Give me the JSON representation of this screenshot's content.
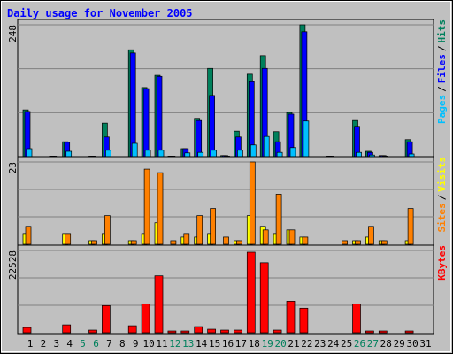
{
  "chart_data": [
    {
      "type": "bar",
      "title": "Daily usage for November 2005",
      "ylim": [
        0,
        248
      ],
      "yticks": [
        248
      ],
      "legend_separator": "/",
      "series": [
        {
          "name": "Hits",
          "color": "#00805c",
          "values": [
            88,
            0,
            1,
            28,
            0,
            1,
            63,
            0,
            201,
            130,
            153,
            1,
            15,
            72,
            166,
            2,
            48,
            155,
            190,
            47,
            83,
            248,
            0,
            1,
            0,
            68,
            10,
            2,
            0,
            32,
            0
          ]
        },
        {
          "name": "Files",
          "color": "#0000ff",
          "values": [
            85,
            0,
            1,
            27,
            0,
            1,
            37,
            0,
            195,
            128,
            151,
            1,
            15,
            68,
            115,
            2,
            37,
            141,
            166,
            28,
            80,
            235,
            0,
            1,
            0,
            57,
            8,
            2,
            0,
            28,
            0
          ]
        },
        {
          "name": "Pages",
          "color": "#00c0ff",
          "values": [
            15,
            0,
            0,
            10,
            0,
            0,
            12,
            0,
            25,
            12,
            12,
            0,
            7,
            8,
            12,
            1,
            12,
            22,
            38,
            8,
            17,
            67,
            0,
            0,
            0,
            8,
            3,
            1,
            0,
            5,
            0
          ]
        }
      ]
    },
    {
      "type": "bar",
      "ylim": [
        0,
        23
      ],
      "yticks": [
        23
      ],
      "legend_separator": "/",
      "series": [
        {
          "name": "Visits",
          "color": "#ffff00",
          "values": [
            3,
            0,
            0,
            3,
            0,
            1,
            3,
            0,
            1,
            3,
            6,
            0,
            2,
            2,
            3,
            0,
            1,
            8,
            5,
            3,
            4,
            2,
            0,
            0,
            0,
            1,
            2,
            1,
            0,
            1,
            0
          ]
        },
        {
          "name": "Sites",
          "color": "#ff8000",
          "values": [
            5,
            0,
            0,
            3,
            0,
            1,
            8,
            0,
            1,
            21,
            20,
            1,
            3,
            8,
            10,
            2,
            1,
            23,
            4,
            14,
            4,
            2,
            0,
            0,
            1,
            1,
            5,
            1,
            0,
            10,
            0
          ]
        }
      ]
    },
    {
      "type": "bar",
      "ylim": [
        0,
        22528
      ],
      "yticks": [
        22528
      ],
      "categories": [
        "1",
        "2",
        "3",
        "4",
        "5",
        "6",
        "7",
        "8",
        "9",
        "10",
        "11",
        "12",
        "13",
        "14",
        "15",
        "16",
        "17",
        "18",
        "19",
        "20",
        "21",
        "22",
        "23",
        "24",
        "25",
        "26",
        "27",
        "28",
        "29",
        "30",
        "31"
      ],
      "category_colors": [
        "#000000",
        "#000000",
        "#000000",
        "#000000",
        "#00805c",
        "#00805c",
        "#000000",
        "#000000",
        "#000000",
        "#000000",
        "#000000",
        "#00805c",
        "#00805c",
        "#000000",
        "#000000",
        "#000000",
        "#000000",
        "#000000",
        "#00805c",
        "#00805c",
        "#000000",
        "#000000",
        "#000000",
        "#000000",
        "#000000",
        "#00805c",
        "#00805c",
        "#000000",
        "#000000",
        "#000000",
        "#000000"
      ],
      "series": [
        {
          "name": "KBytes",
          "color": "#ff0000",
          "values": [
            1440,
            0,
            0,
            2157,
            0,
            719,
            7430,
            0,
            1917,
            7910,
            15580,
            480,
            480,
            1678,
            959,
            719,
            719,
            22048,
            19172,
            719,
            8628,
            6710,
            0,
            0,
            0,
            7910,
            480,
            480,
            0,
            480,
            0
          ]
        }
      ]
    }
  ]
}
